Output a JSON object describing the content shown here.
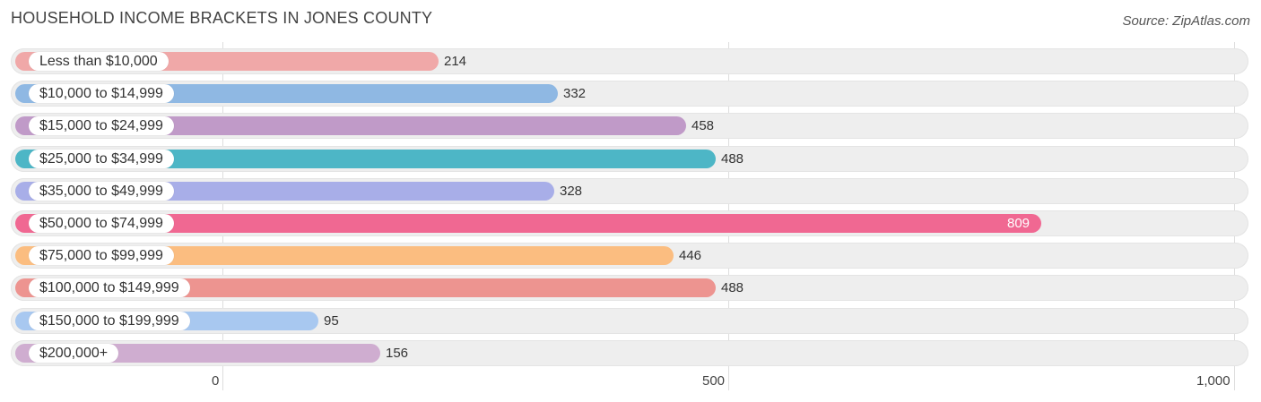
{
  "title": "HOUSEHOLD INCOME BRACKETS IN JONES COUNTY",
  "source": "Source: ZipAtlas.com",
  "chart_data": {
    "type": "bar",
    "orientation": "horizontal",
    "title": "HOUSEHOLD INCOME BRACKETS IN JONES COUNTY",
    "categories": [
      "Less than $10,000",
      "$10,000 to $14,999",
      "$15,000 to $24,999",
      "$25,000 to $34,999",
      "$35,000 to $49,999",
      "$50,000 to $74,999",
      "$75,000 to $99,999",
      "$100,000 to $149,999",
      "$150,000 to $199,999",
      "$200,000+"
    ],
    "values": [
      214,
      332,
      458,
      488,
      328,
      809,
      446,
      488,
      95,
      156
    ],
    "value_labels": [
      "214",
      "332",
      "458",
      "488",
      "328",
      "809",
      "446",
      "488",
      "95",
      "156"
    ],
    "colors": [
      "#f0a8a8",
      "#8fb8e3",
      "#c09ac8",
      "#4db6c6",
      "#a8aee8",
      "#f06892",
      "#fbbd80",
      "#ed9490",
      "#a8c8f0",
      "#cfadd0"
    ],
    "xlim": [
      0,
      1000
    ],
    "xticks": [
      0,
      500,
      1000
    ],
    "xtick_labels": [
      "0",
      "500",
      "1,000"
    ],
    "grid": true
  }
}
